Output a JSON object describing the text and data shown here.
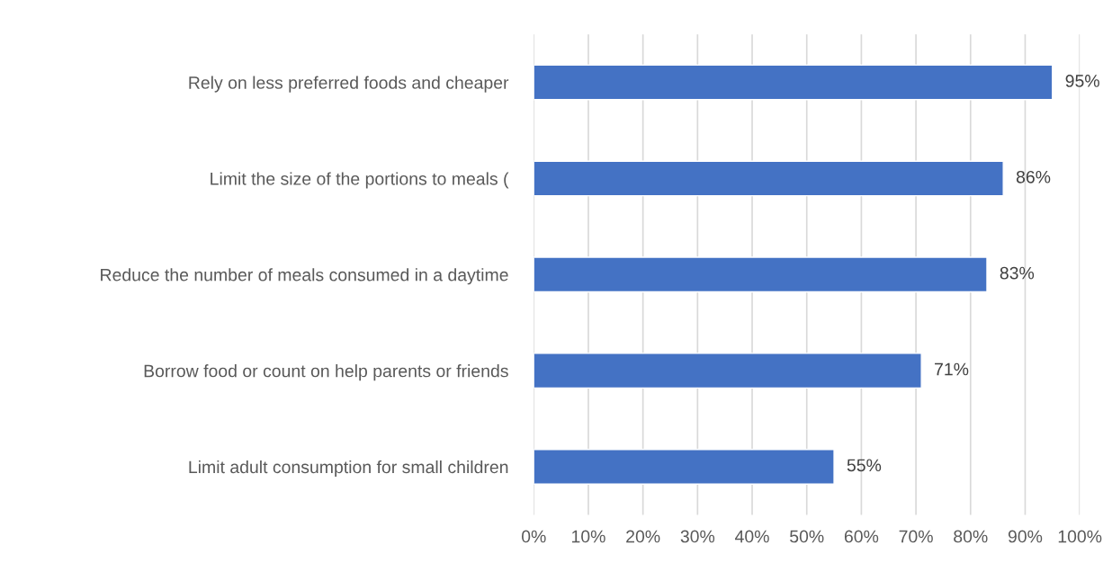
{
  "chart_data": {
    "type": "bar",
    "orientation": "horizontal",
    "categories": [
      "Rely on less preferred foods and cheaper",
      "Limit the size of the portions to meals (",
      "Reduce the number of meals consumed in a daytime",
      "Borrow food or count on help parents or friends",
      "Limit adult consumption for small children"
    ],
    "values": [
      95,
      86,
      83,
      71,
      55
    ],
    "value_labels": [
      "95%",
      "86%",
      "83%",
      "71%",
      "55%"
    ],
    "color": "#4472c4",
    "xlim": [
      0,
      100
    ],
    "xticks": [
      {
        "value": 0,
        "label": "0%"
      },
      {
        "value": 10,
        "label": "10%"
      },
      {
        "value": 20,
        "label": "20%"
      },
      {
        "value": 30,
        "label": "30%"
      },
      {
        "value": 40,
        "label": "40%"
      },
      {
        "value": 50,
        "label": "50%"
      },
      {
        "value": 60,
        "label": "60%"
      },
      {
        "value": 70,
        "label": "70%"
      },
      {
        "value": 80,
        "label": "80%"
      },
      {
        "value": 90,
        "label": "90%"
      },
      {
        "value": 100,
        "label": "100%"
      }
    ],
    "grid": "x"
  }
}
